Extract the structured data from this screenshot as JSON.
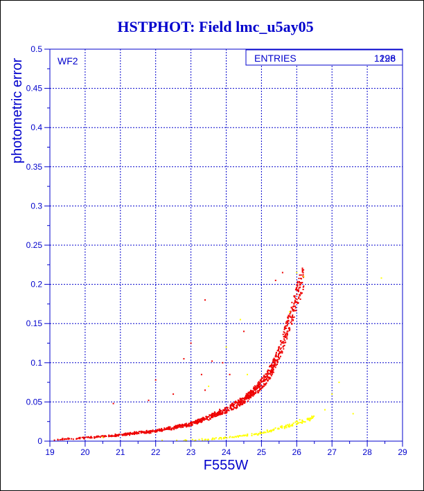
{
  "chart_data": {
    "type": "scatter",
    "title": "HSTPHOT: Field lmc_u5ay05",
    "xlabel": "F555W",
    "ylabel": "photometric error",
    "xlim": [
      19,
      29
    ],
    "ylim": [
      0,
      0.5
    ],
    "x_ticks": [
      "19",
      "20",
      "21",
      "22",
      "23",
      "24",
      "25",
      "26",
      "27",
      "28",
      "29"
    ],
    "y_ticks": [
      "0",
      "0.05",
      "0.1",
      "0.15",
      "0.2",
      "0.25",
      "0.3",
      "0.35",
      "0.4",
      "0.45",
      "0.5"
    ],
    "grid": true,
    "panel_label": "WF2",
    "stats_box": {
      "label": "ENTRIES",
      "values": [
        "1298",
        "126"
      ]
    },
    "colors": {
      "frame": "#0000cc",
      "title": "#0000cc",
      "grid": "#0000cc",
      "series_main": "#ee0000",
      "series_secondary": "#ffff00"
    },
    "series": [
      {
        "color": "#ee0000",
        "trend": {
          "x": [
            19.0,
            20.0,
            21.0,
            22.0,
            22.5,
            23.0,
            23.5,
            24.0,
            24.3,
            24.6,
            24.9,
            25.1,
            25.3,
            25.5,
            25.7,
            25.85,
            26.0,
            26.2
          ],
          "y": [
            0.002,
            0.004,
            0.008,
            0.013,
            0.017,
            0.022,
            0.03,
            0.04,
            0.047,
            0.056,
            0.068,
            0.078,
            0.092,
            0.112,
            0.14,
            0.16,
            0.185,
            0.21
          ]
        },
        "outliers": [
          {
            "x": 23.0,
            "y": 0.125
          },
          {
            "x": 23.4,
            "y": 0.18
          },
          {
            "x": 22.8,
            "y": 0.105
          },
          {
            "x": 23.6,
            "y": 0.102
          },
          {
            "x": 21.8,
            "y": 0.052
          },
          {
            "x": 20.8,
            "y": 0.048
          },
          {
            "x": 22.0,
            "y": 0.078
          },
          {
            "x": 23.9,
            "y": 0.1
          },
          {
            "x": 24.1,
            "y": 0.085
          },
          {
            "x": 23.3,
            "y": 0.085
          },
          {
            "x": 22.5,
            "y": 0.06
          },
          {
            "x": 25.6,
            "y": 0.215
          },
          {
            "x": 25.4,
            "y": 0.205
          },
          {
            "x": 24.5,
            "y": 0.14
          },
          {
            "x": 23.4,
            "y": 0.065
          }
        ]
      },
      {
        "color": "#ffff00",
        "trend": {
          "x": [
            22.0,
            23.0,
            24.0,
            24.5,
            25.0,
            25.3,
            25.6,
            25.9,
            26.2,
            26.5
          ],
          "y": [
            0.0005,
            0.001,
            0.004,
            0.007,
            0.01,
            0.014,
            0.018,
            0.022,
            0.026,
            0.03
          ]
        },
        "outliers": [
          {
            "x": 26.0,
            "y": 0.215
          },
          {
            "x": 26.2,
            "y": 0.21
          },
          {
            "x": 24.4,
            "y": 0.155
          },
          {
            "x": 24.6,
            "y": 0.085
          },
          {
            "x": 23.5,
            "y": 0.07
          },
          {
            "x": 27.2,
            "y": 0.075
          },
          {
            "x": 27.0,
            "y": 0.06
          },
          {
            "x": 28.4,
            "y": 0.208
          },
          {
            "x": 20.5,
            "y": 0.005
          },
          {
            "x": 25.8,
            "y": 0.165
          },
          {
            "x": 26.8,
            "y": 0.04
          },
          {
            "x": 27.6,
            "y": 0.035
          },
          {
            "x": 24.0,
            "y": 0.12
          }
        ]
      }
    ]
  }
}
